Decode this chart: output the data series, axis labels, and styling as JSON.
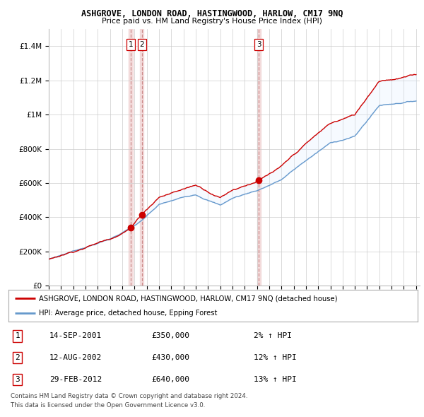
{
  "title": "ASHGROVE, LONDON ROAD, HASTINGWOOD, HARLOW, CM17 9NQ",
  "subtitle": "Price paid vs. HM Land Registry's House Price Index (HPI)",
  "ylim": [
    0,
    1500000
  ],
  "yticks": [
    0,
    200000,
    400000,
    600000,
    800000,
    1000000,
    1200000,
    1400000
  ],
  "ytick_labels": [
    "£0",
    "£200K",
    "£400K",
    "£600K",
    "£800K",
    "£1M",
    "£1.2M",
    "£1.4M"
  ],
  "x_start_year": 1995,
  "x_end_year": 2025,
  "line_color_red": "#cc0000",
  "line_color_blue": "#6699cc",
  "fill_color_blue": "#ddeeff",
  "vline_color": "#cc8888",
  "vline_fill_color": "#f0d0d0",
  "sale_years": [
    2001.7,
    2002.6,
    2012.15
  ],
  "sale_prices": [
    350000,
    430000,
    640000
  ],
  "sale_labels": [
    "1",
    "2",
    "3"
  ],
  "legend_red_label": "ASHGROVE, LONDON ROAD, HASTINGWOOD, HARLOW, CM17 9NQ (detached house)",
  "legend_blue_label": "HPI: Average price, detached house, Epping Forest",
  "table_rows": [
    {
      "num": "1",
      "date": "14-SEP-2001",
      "price": "£350,000",
      "hpi": "2% ↑ HPI"
    },
    {
      "num": "2",
      "date": "12-AUG-2002",
      "price": "£430,000",
      "hpi": "12% ↑ HPI"
    },
    {
      "num": "3",
      "date": "29-FEB-2012",
      "price": "£640,000",
      "hpi": "13% ↑ HPI"
    }
  ],
  "footer": "Contains HM Land Registry data © Crown copyright and database right 2024.\nThis data is licensed under the Open Government Licence v3.0.",
  "background_color": "#ffffff",
  "grid_color": "#cccccc",
  "hpi_key_points": {
    "1995": 155000,
    "2000": 275000,
    "2001.7": 340000,
    "2002.6": 380000,
    "2004": 470000,
    "2007": 530000,
    "2008": 500000,
    "2009": 470000,
    "2010": 510000,
    "2012.15": 560000,
    "2014": 620000,
    "2016": 730000,
    "2018": 830000,
    "2020": 870000,
    "2022": 1050000,
    "2024": 1070000,
    "2025": 1080000
  }
}
